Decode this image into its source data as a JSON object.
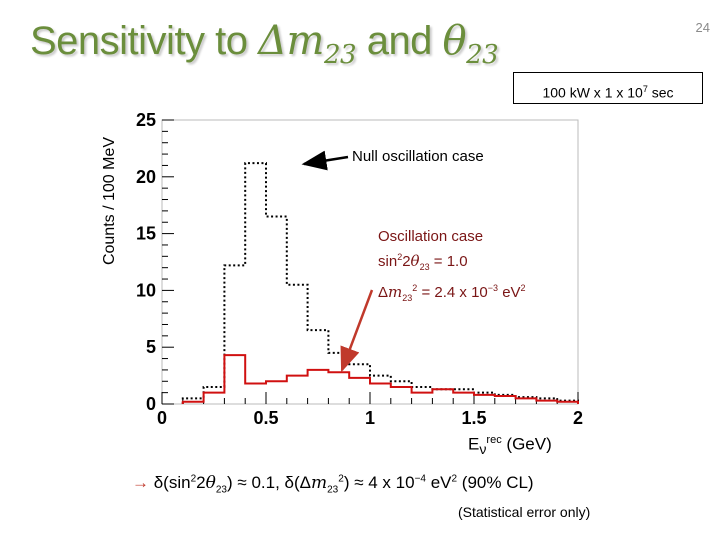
{
  "slide": {
    "number": "24",
    "title_prefix": "Sensitivity to ",
    "title_delta": "Δ",
    "title_m": "m",
    "title_sub1": "23",
    "title_and": " and ",
    "title_theta": "θ",
    "title_sub2": "23",
    "exposure_text": "100 kW x 1 x 10",
    "exposure_exp": "7",
    "exposure_unit": " sec",
    "ylabel": "Counts / 100 MeV",
    "xlabel_e": "E",
    "xlabel_nu": "ν",
    "xlabel_sup": "rec",
    "xlabel_unit": " (GeV)",
    "null_annotation": "Null oscillation case",
    "osc_title": "Oscillation case",
    "osc_line2_a": "sin",
    "osc_line2_sup": "2",
    "osc_line2_b": "2",
    "osc_line2_theta": "θ",
    "osc_line2_sub": "23",
    "osc_line2_c": " = 1.0",
    "osc_line3_delta": "Δ",
    "osc_line3_m": "m",
    "osc_line3_sub": "23",
    "osc_line3_sup": "2",
    "osc_line3_c": " = 2.4 x 10",
    "osc_line3_exp": "−3",
    "osc_line3_unit": " eV",
    "osc_line3_unit_sup": "2",
    "result_arrow": "→",
    "result_a": " δ(sin",
    "result_sup1": "2",
    "result_b": "2",
    "result_theta": "θ",
    "result_sub1": "23",
    "result_c": ") ≈ 0.1, δ(Δ",
    "result_m": "m",
    "result_sub2": "23",
    "result_sup2": "2",
    "result_d": ") ≈ 4 x 10",
    "result_exp": "−4",
    "result_e": " eV",
    "result_sup3": "2",
    "result_f": " (90% CL)",
    "stat_note": "(Statistical error only)"
  },
  "colors": {
    "title": "#6b8e3c",
    "null_series": "#000000",
    "osc_series": "#d01010",
    "osc_text": "#7a1515",
    "arrow": "#c0392b"
  },
  "chart_data": {
    "type": "bar",
    "style": "step-histogram",
    "xlabel": "Eνrec (GeV)",
    "ylabel": "Counts / 100 MeV",
    "xlim": [
      0,
      2
    ],
    "ylim": [
      0,
      25
    ],
    "x_ticks": [
      "0",
      "0.5",
      "1",
      "1.5",
      "2"
    ],
    "y_ticks": [
      "0",
      "5",
      "10",
      "15",
      "20",
      "25"
    ],
    "bin_edges": [
      0.1,
      0.2,
      0.3,
      0.4,
      0.5,
      0.6,
      0.7,
      0.8,
      0.9,
      1.0,
      1.1,
      1.2,
      1.3,
      1.4,
      1.5,
      1.6,
      1.7,
      1.8,
      1.9,
      2.0
    ],
    "series": [
      {
        "name": "Null oscillation case",
        "style": "dotted",
        "values": [
          0.5,
          1.5,
          12.2,
          21.2,
          16.5,
          10.5,
          6.5,
          4.5,
          3.5,
          2.5,
          2.0,
          1.5,
          1.3,
          1.3,
          1.0,
          0.8,
          0.6,
          0.5,
          0.3
        ]
      },
      {
        "name": "Oscillation case",
        "style": "solid",
        "values": [
          0.2,
          1.0,
          4.3,
          1.8,
          2.0,
          2.5,
          3.0,
          2.8,
          2.3,
          1.8,
          1.5,
          1.0,
          1.3,
          1.0,
          0.8,
          0.7,
          0.5,
          0.3,
          0.2
        ]
      }
    ]
  }
}
